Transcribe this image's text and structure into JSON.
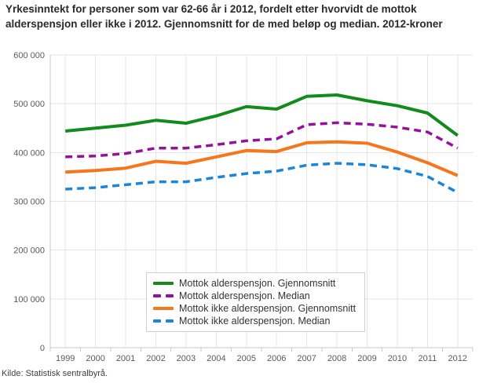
{
  "title": "Yrkesinntekt for personer som var 62-66 år i 2012, fordelt etter hvorvidt de mottok alderspensjon eller ikke i 2012. Gjennomsnitt for de med beløp og median. 2012-kroner",
  "footer": {
    "source": "Kilde: Statistisk sentralbyrå."
  },
  "colors": {
    "grid": "#e4e4e4",
    "axis": "#c9c9c9",
    "tick_label": "#5a5a5a",
    "legend_border": "#cfcfcf",
    "green": "#128b1c",
    "purple": "#93129b",
    "orange": "#f7761b",
    "blue": "#1b86d9"
  },
  "chart_data": {
    "type": "line",
    "title": "Yrkesinntekt for personer som var 62-66 år i 2012, fordelt etter hvorvidt de mottok alderspensjon eller ikke i 2012. Gjennomsnitt for de med beløp og median. 2012-kroner",
    "xlabel": "",
    "ylabel": "",
    "ylim": [
      0,
      600000
    ],
    "grid": true,
    "legend_position": "inside-bottom-center",
    "y_tick_labels": [
      "0",
      "100 000",
      "200 000",
      "300 000",
      "400 000",
      "500 000",
      "600 000"
    ],
    "y_tick_values": [
      0,
      100000,
      200000,
      300000,
      400000,
      500000,
      600000
    ],
    "categories": [
      "1999",
      "2000",
      "2001",
      "2002",
      "2003",
      "2004",
      "2005",
      "2006",
      "2007",
      "2008",
      "2009",
      "2010",
      "2011",
      "2012"
    ],
    "series": [
      {
        "name": "Mottok alderspensjon. Gjennomsnitt",
        "color_key": "green",
        "dash": "solid",
        "values": [
          444000,
          450000,
          456000,
          466000,
          460000,
          475000,
          494000,
          489000,
          515000,
          518000,
          506000,
          496000,
          481000,
          435000
        ]
      },
      {
        "name": "Mottok alderspensjon. Median",
        "color_key": "purple",
        "dash": "dashed",
        "values": [
          391000,
          393000,
          398000,
          409000,
          409000,
          416000,
          424000,
          428000,
          457000,
          461000,
          458000,
          452000,
          442000,
          409000
        ]
      },
      {
        "name": "Mottok ikke alderspensjon. Gjennomsnitt",
        "color_key": "orange",
        "dash": "solid",
        "values": [
          360000,
          363000,
          368000,
          382000,
          378000,
          391000,
          404000,
          402000,
          420000,
          422000,
          419000,
          401000,
          379000,
          353000
        ]
      },
      {
        "name": "Mottok ikke alderspensjon. Median",
        "color_key": "blue",
        "dash": "dashed",
        "values": [
          325000,
          328000,
          334000,
          340000,
          340000,
          349000,
          357000,
          362000,
          374000,
          378000,
          375000,
          367000,
          351000,
          318000
        ]
      }
    ]
  }
}
